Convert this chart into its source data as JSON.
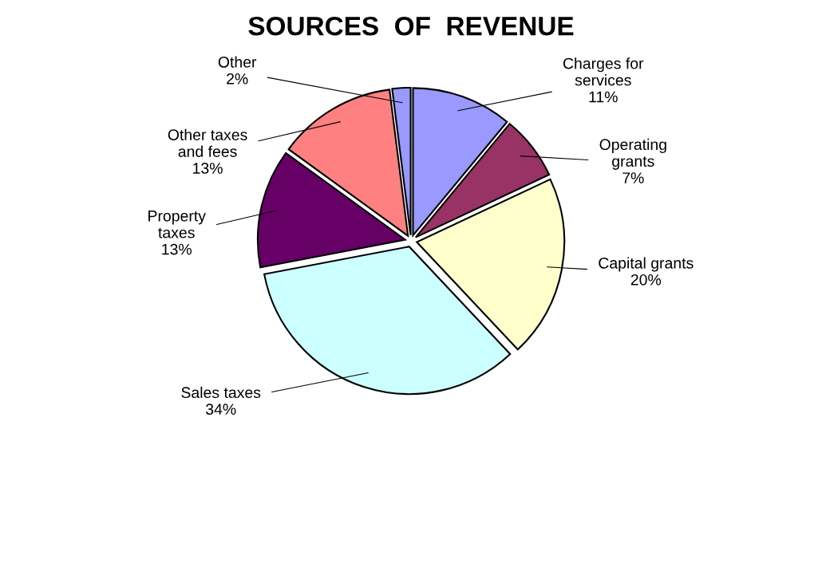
{
  "chart_data": {
    "type": "pie",
    "title": "SOURCES  OF  REVENUE",
    "categories": [
      "Charges for\nservices",
      "Operating\ngrants",
      "Capital grants",
      "Sales taxes",
      "Property\ntaxes",
      "Other taxes\nand fees",
      "Other"
    ],
    "values": [
      11,
      7,
      20,
      34,
      13,
      13,
      2
    ],
    "value_labels": [
      "11%",
      "7%",
      "20%",
      "34%",
      "13%",
      "13%",
      "2%"
    ],
    "colors": [
      "#9999ff",
      "#993366",
      "#ffffcc",
      "#ccffff",
      "#660066",
      "#ff8080",
      "#9999ff"
    ],
    "legend": false
  }
}
